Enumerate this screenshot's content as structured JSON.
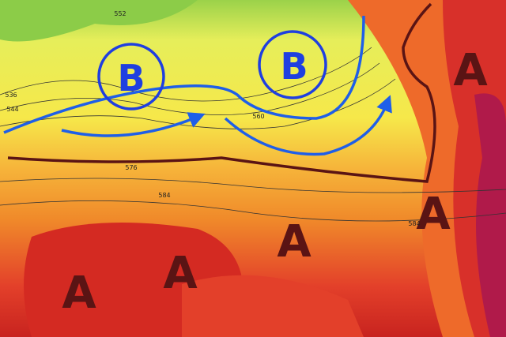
{
  "lows": [
    "B",
    "B"
  ],
  "highs": [
    "A",
    "A",
    "A",
    "A",
    "A"
  ],
  "contour_labels": [
    "552",
    "536",
    "544",
    "560",
    "576",
    "584",
    "584"
  ]
}
